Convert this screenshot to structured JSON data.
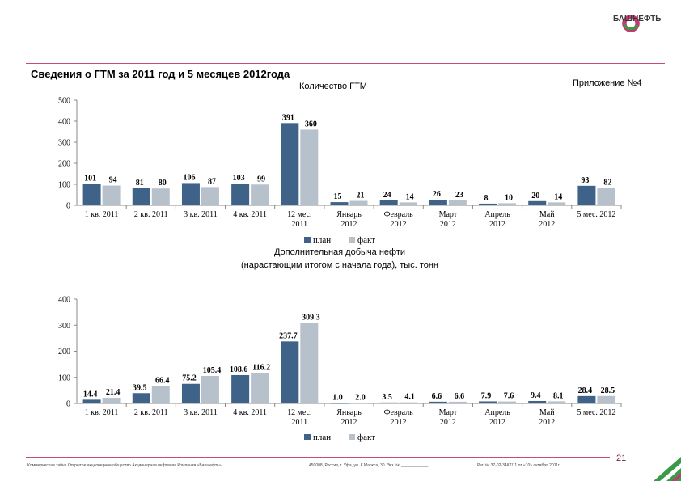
{
  "header": {
    "title": "Сведения о ГТМ за 2011 год и 5 месяцев 2012года",
    "appendix": "Приложение №4",
    "logo_text": "БАШНЕФТЬ"
  },
  "chart_data": [
    {
      "type": "bar",
      "title": "Количество ГТМ",
      "categories": [
        "1 кв. 2011",
        "2 кв. 2011",
        "3 кв. 2011",
        "4 кв. 2011",
        "12 мес. 2011",
        "Январь 2012",
        "Февраль 2012",
        "Март 2012",
        "Апрель 2012",
        "Май 2012",
        "5 мес. 2012"
      ],
      "series": [
        {
          "name": "план",
          "color": "#3e6288",
          "values": [
            101,
            81,
            106,
            103,
            391,
            15,
            24,
            26,
            8,
            20,
            93
          ]
        },
        {
          "name": "факт",
          "color": "#b7c1cb",
          "values": [
            94,
            80,
            87,
            99,
            360,
            21,
            14,
            23,
            10,
            14,
            82
          ]
        }
      ],
      "ylim": [
        0,
        500
      ],
      "yticks": [
        0,
        100,
        200,
        300,
        400,
        500
      ],
      "legend": "bottom"
    },
    {
      "type": "bar",
      "title": "Дополнительная добыча нефти (нарастающим итогом с начала года), тыс. тонн",
      "categories": [
        "1 кв. 2011",
        "2 кв. 2011",
        "3 кв. 2011",
        "4 кв. 2011",
        "12 мес. 2011",
        "Январь 2012",
        "Февраль 2012",
        "Март 2012",
        "Апрель 2012",
        "Май 2012",
        "5 мес. 2012"
      ],
      "series": [
        {
          "name": "план",
          "color": "#3e6288",
          "values": [
            14.4,
            39.5,
            75.2,
            108.6,
            237.7,
            1.0,
            3.5,
            6.6,
            7.9,
            9.4,
            28.4
          ],
          "labels": [
            "14.4",
            "39.5",
            "75.2",
            "108.6",
            "237.7",
            "1.0",
            "3.5",
            "6.6",
            "7.9",
            "9.4",
            "28.4"
          ]
        },
        {
          "name": "факт",
          "color": "#b7c1cb",
          "values": [
            21.4,
            66.4,
            105.4,
            116.2,
            309.3,
            2.0,
            4.1,
            6.6,
            7.6,
            8.1,
            28.5
          ],
          "labels": [
            "21.4",
            "66.4",
            "105.4",
            "116.2",
            "309.3",
            "2.0",
            "4.1",
            "6.6",
            "7.6",
            "8.1",
            "28.5"
          ]
        }
      ],
      "ylim": [
        0,
        400
      ],
      "yticks": [
        0,
        100,
        200,
        300,
        400
      ],
      "legend": "bottom"
    }
  ],
  "footer": {
    "confidential": "Коммерческая тайна Открытое акционерное общество Акционерная нефтяная Компания «Башнефть».",
    "address": "450008, Россия, г. Уфа, ул. К.Маркса, 30. Экз. № ____________",
    "reg": "Рег. № 37-02-34КТ/11 от «10» октября 2011г.",
    "page": "21"
  }
}
